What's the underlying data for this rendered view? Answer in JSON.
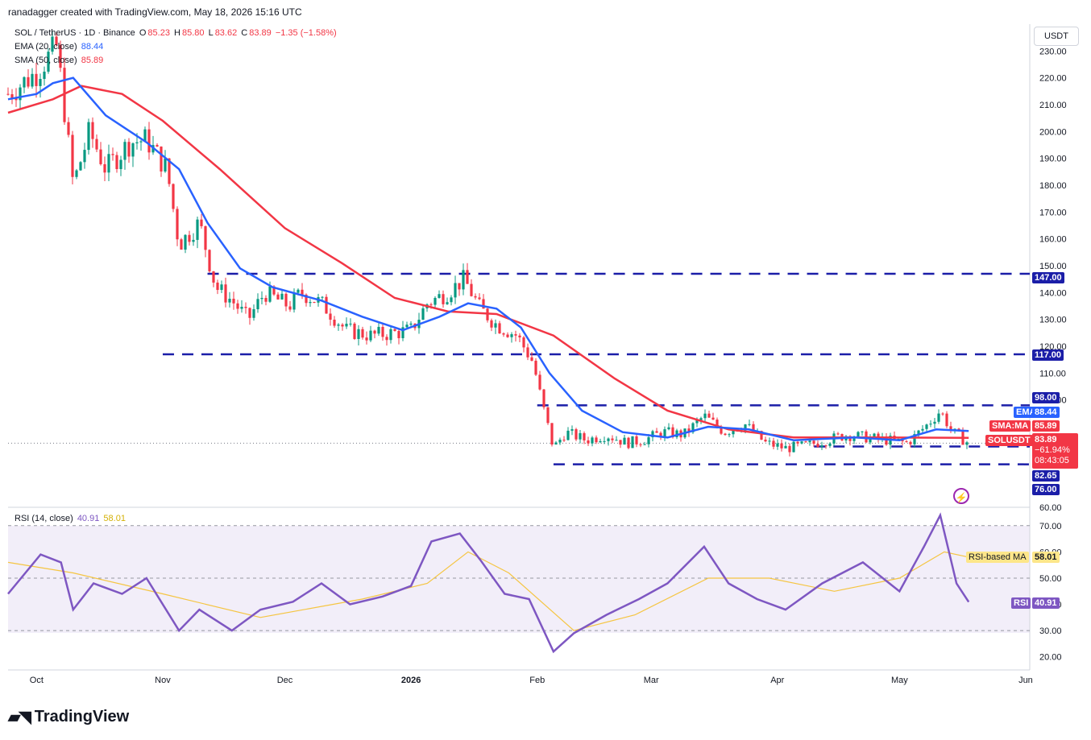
{
  "header": {
    "text": "ranadagger created with TradingView.com, May 18, 2026 15:16 UTC"
  },
  "legend": {
    "symbol": "SOL / TetherUS · 1D · Binance",
    "o_label": "O",
    "o_value": "85.23",
    "h_label": "H",
    "h_value": "85.80",
    "l_label": "L",
    "l_value": "83.62",
    "c_label": "C",
    "c_value": "83.89",
    "change": "−1.35 (−1.58%)",
    "ema_label": "EMA (20, close)",
    "ema_value": "88.44",
    "sma_label": "SMA (50, close)",
    "sma_value": "85.89",
    "rsi_label": "RSI (14, close)",
    "rsi_value": "40.91",
    "rsi_ma_value": "58.01"
  },
  "currency_button": "USDT",
  "price_axis": {
    "ticks": [
      "230.00",
      "220.00",
      "210.00",
      "200.00",
      "190.00",
      "180.00",
      "170.00",
      "160.00",
      "150.00",
      "140.00",
      "130.00",
      "120.00",
      "110.00",
      "100.00",
      "60.00"
    ]
  },
  "rsi_axis": {
    "ticks": [
      "70.00",
      "60.00",
      "50.00",
      "40.00",
      "30.00",
      "20.00"
    ]
  },
  "time_axis": {
    "ticks": [
      "Oct",
      "Nov",
      "Dec",
      "2026",
      "Feb",
      "Mar",
      "Apr",
      "May",
      "Jun"
    ]
  },
  "level_tags": [
    {
      "label": "147.00",
      "color": "#1b1ea8"
    },
    {
      "label": "117.00",
      "color": "#1b1ea8"
    },
    {
      "label": "98.00",
      "color": "#1b1ea8"
    },
    {
      "label": "82.65",
      "color": "#1b1ea8"
    },
    {
      "label": "76.00",
      "color": "#1b1ea8"
    }
  ],
  "price_tags": {
    "ema": {
      "name": "EMA",
      "value": "88.44",
      "color": "#2962ff"
    },
    "sma": {
      "name": "SMA:MA",
      "value": "85.89",
      "color": "#f23645"
    },
    "last": {
      "name": "SOLUSDT",
      "value": "83.89",
      "change": "−61.94%",
      "countdown": "08:43:05",
      "color": "#f23645"
    }
  },
  "rsi_tags": {
    "ma": {
      "name": "RSI-based MA",
      "value": "58.01",
      "color": "#fde68a"
    },
    "rsi": {
      "name": "RSI",
      "value": "40.91",
      "color": "#7e57c2"
    }
  },
  "logo": "TradingView",
  "chart_data": {
    "type": "candlestick",
    "symbol": "SOL / TetherUS",
    "interval": "1D",
    "price_range": [
      60,
      240
    ],
    "horizontal_levels": [
      147.0,
      117.0,
      98.0,
      82.65,
      76.0
    ],
    "close_series": [
      {
        "date": "2025-09-24",
        "close": 214
      },
      {
        "date": "2025-10-01",
        "close": 222
      },
      {
        "date": "2025-10-06",
        "close": 232
      },
      {
        "date": "2025-10-10",
        "close": 180
      },
      {
        "date": "2025-10-14",
        "close": 200
      },
      {
        "date": "2025-10-18",
        "close": 186
      },
      {
        "date": "2025-10-24",
        "close": 196
      },
      {
        "date": "2025-10-28",
        "close": 197
      },
      {
        "date": "2025-11-02",
        "close": 186
      },
      {
        "date": "2025-11-05",
        "close": 158
      },
      {
        "date": "2025-11-10",
        "close": 166
      },
      {
        "date": "2025-11-14",
        "close": 142
      },
      {
        "date": "2025-11-18",
        "close": 137
      },
      {
        "date": "2025-11-22",
        "close": 130
      },
      {
        "date": "2025-11-26",
        "close": 140
      },
      {
        "date": "2025-12-02",
        "close": 135
      },
      {
        "date": "2025-12-05",
        "close": 140
      },
      {
        "date": "2025-12-10",
        "close": 136
      },
      {
        "date": "2025-12-16",
        "close": 126
      },
      {
        "date": "2025-12-22",
        "close": 124
      },
      {
        "date": "2025-12-28",
        "close": 125
      },
      {
        "date": "2026-01-01",
        "close": 126
      },
      {
        "date": "2026-01-05",
        "close": 136
      },
      {
        "date": "2026-01-10",
        "close": 140
      },
      {
        "date": "2026-01-14",
        "close": 145
      },
      {
        "date": "2026-01-18",
        "close": 134
      },
      {
        "date": "2026-01-22",
        "close": 128
      },
      {
        "date": "2026-01-27",
        "close": 124
      },
      {
        "date": "2026-01-31",
        "close": 114
      },
      {
        "date": "2026-02-02",
        "close": 100
      },
      {
        "date": "2026-02-05",
        "close": 82
      },
      {
        "date": "2026-02-08",
        "close": 88
      },
      {
        "date": "2026-02-13",
        "close": 85
      },
      {
        "date": "2026-02-18",
        "close": 87
      },
      {
        "date": "2026-02-23",
        "close": 84
      },
      {
        "date": "2026-02-27",
        "close": 85
      },
      {
        "date": "2026-03-04",
        "close": 88
      },
      {
        "date": "2026-03-09",
        "close": 87
      },
      {
        "date": "2026-03-14",
        "close": 94
      },
      {
        "date": "2026-03-19",
        "close": 88
      },
      {
        "date": "2026-03-24",
        "close": 91
      },
      {
        "date": "2026-03-29",
        "close": 84
      },
      {
        "date": "2026-04-03",
        "close": 82
      },
      {
        "date": "2026-04-08",
        "close": 83
      },
      {
        "date": "2026-04-13",
        "close": 85
      },
      {
        "date": "2026-04-18",
        "close": 87
      },
      {
        "date": "2026-04-23",
        "close": 86
      },
      {
        "date": "2026-04-28",
        "close": 85
      },
      {
        "date": "2026-05-03",
        "close": 84
      },
      {
        "date": "2026-05-08",
        "close": 91
      },
      {
        "date": "2026-05-11",
        "close": 96
      },
      {
        "date": "2026-05-14",
        "close": 88
      },
      {
        "date": "2026-05-18",
        "close": 83.89
      }
    ],
    "ema20": [
      {
        "date": "2025-09-24",
        "value": 212
      },
      {
        "date": "2025-10-01",
        "value": 214
      },
      {
        "date": "2025-10-05",
        "value": 218
      },
      {
        "date": "2025-10-10",
        "value": 220
      },
      {
        "date": "2025-10-18",
        "value": 206
      },
      {
        "date": "2025-10-28",
        "value": 196
      },
      {
        "date": "2025-11-05",
        "value": 186
      },
      {
        "date": "2025-11-12",
        "value": 166
      },
      {
        "date": "2025-11-20",
        "value": 149
      },
      {
        "date": "2025-11-28",
        "value": 142
      },
      {
        "date": "2025-12-10",
        "value": 137
      },
      {
        "date": "2025-12-20",
        "value": 131
      },
      {
        "date": "2025-12-30",
        "value": 126
      },
      {
        "date": "2026-01-08",
        "value": 131
      },
      {
        "date": "2026-01-15",
        "value": 136
      },
      {
        "date": "2026-01-22",
        "value": 134
      },
      {
        "date": "2026-01-28",
        "value": 127
      },
      {
        "date": "2026-02-04",
        "value": 110
      },
      {
        "date": "2026-02-12",
        "value": 96
      },
      {
        "date": "2026-02-22",
        "value": 88
      },
      {
        "date": "2026-03-05",
        "value": 86
      },
      {
        "date": "2026-03-15",
        "value": 90
      },
      {
        "date": "2026-03-25",
        "value": 89
      },
      {
        "date": "2026-04-05",
        "value": 85
      },
      {
        "date": "2026-04-20",
        "value": 86
      },
      {
        "date": "2026-05-01",
        "value": 85
      },
      {
        "date": "2026-05-10",
        "value": 89
      },
      {
        "date": "2026-05-18",
        "value": 88.44
      }
    ],
    "sma50": [
      {
        "date": "2025-09-24",
        "value": 207
      },
      {
        "date": "2025-10-05",
        "value": 212
      },
      {
        "date": "2025-10-12",
        "value": 217
      },
      {
        "date": "2025-10-22",
        "value": 214
      },
      {
        "date": "2025-11-01",
        "value": 204
      },
      {
        "date": "2025-11-15",
        "value": 186
      },
      {
        "date": "2025-12-01",
        "value": 164
      },
      {
        "date": "2025-12-15",
        "value": 151
      },
      {
        "date": "2025-12-28",
        "value": 138
      },
      {
        "date": "2026-01-10",
        "value": 133
      },
      {
        "date": "2026-01-22",
        "value": 132
      },
      {
        "date": "2026-02-05",
        "value": 124
      },
      {
        "date": "2026-02-20",
        "value": 108
      },
      {
        "date": "2026-03-05",
        "value": 96
      },
      {
        "date": "2026-03-20",
        "value": 89
      },
      {
        "date": "2026-04-05",
        "value": 86
      },
      {
        "date": "2026-04-25",
        "value": 86
      },
      {
        "date": "2026-05-18",
        "value": 85.89
      }
    ],
    "rsi": [
      {
        "date": "2025-09-24",
        "value": 44
      },
      {
        "date": "2025-10-02",
        "value": 59
      },
      {
        "date": "2025-10-07",
        "value": 56
      },
      {
        "date": "2025-10-10",
        "value": 38
      },
      {
        "date": "2025-10-15",
        "value": 48
      },
      {
        "date": "2025-10-22",
        "value": 44
      },
      {
        "date": "2025-10-28",
        "value": 50
      },
      {
        "date": "2025-11-05",
        "value": 30
      },
      {
        "date": "2025-11-10",
        "value": 38
      },
      {
        "date": "2025-11-18",
        "value": 30
      },
      {
        "date": "2025-11-25",
        "value": 38
      },
      {
        "date": "2025-12-03",
        "value": 41
      },
      {
        "date": "2025-12-10",
        "value": 48
      },
      {
        "date": "2025-12-17",
        "value": 40
      },
      {
        "date": "2025-12-25",
        "value": 43
      },
      {
        "date": "2026-01-01",
        "value": 47
      },
      {
        "date": "2026-01-06",
        "value": 64
      },
      {
        "date": "2026-01-13",
        "value": 67
      },
      {
        "date": "2026-01-18",
        "value": 57
      },
      {
        "date": "2026-01-24",
        "value": 44
      },
      {
        "date": "2026-01-30",
        "value": 42
      },
      {
        "date": "2026-02-05",
        "value": 22
      },
      {
        "date": "2026-02-10",
        "value": 29
      },
      {
        "date": "2026-02-18",
        "value": 36
      },
      {
        "date": "2026-02-26",
        "value": 42
      },
      {
        "date": "2026-03-05",
        "value": 48
      },
      {
        "date": "2026-03-14",
        "value": 62
      },
      {
        "date": "2026-03-20",
        "value": 48
      },
      {
        "date": "2026-03-27",
        "value": 42
      },
      {
        "date": "2026-04-03",
        "value": 38
      },
      {
        "date": "2026-04-12",
        "value": 48
      },
      {
        "date": "2026-04-22",
        "value": 56
      },
      {
        "date": "2026-05-01",
        "value": 45
      },
      {
        "date": "2026-05-07",
        "value": 62
      },
      {
        "date": "2026-05-11",
        "value": 74
      },
      {
        "date": "2026-05-15",
        "value": 48
      },
      {
        "date": "2026-05-18",
        "value": 40.91
      }
    ],
    "rsi_ma": [
      {
        "date": "2025-09-24",
        "value": 56
      },
      {
        "date": "2025-10-10",
        "value": 52
      },
      {
        "date": "2025-11-01",
        "value": 44
      },
      {
        "date": "2025-11-25",
        "value": 35
      },
      {
        "date": "2025-12-20",
        "value": 42
      },
      {
        "date": "2026-01-05",
        "value": 48
      },
      {
        "date": "2026-01-15",
        "value": 60
      },
      {
        "date": "2026-01-25",
        "value": 52
      },
      {
        "date": "2026-02-10",
        "value": 30
      },
      {
        "date": "2026-02-25",
        "value": 36
      },
      {
        "date": "2026-03-15",
        "value": 50
      },
      {
        "date": "2026-03-30",
        "value": 50
      },
      {
        "date": "2026-04-15",
        "value": 45
      },
      {
        "date": "2026-05-01",
        "value": 50
      },
      {
        "date": "2026-05-12",
        "value": 60
      },
      {
        "date": "2026-05-18",
        "value": 58.01
      }
    ],
    "rsi_range": [
      15,
      77
    ],
    "rsi_bands": [
      30,
      50,
      70
    ]
  }
}
